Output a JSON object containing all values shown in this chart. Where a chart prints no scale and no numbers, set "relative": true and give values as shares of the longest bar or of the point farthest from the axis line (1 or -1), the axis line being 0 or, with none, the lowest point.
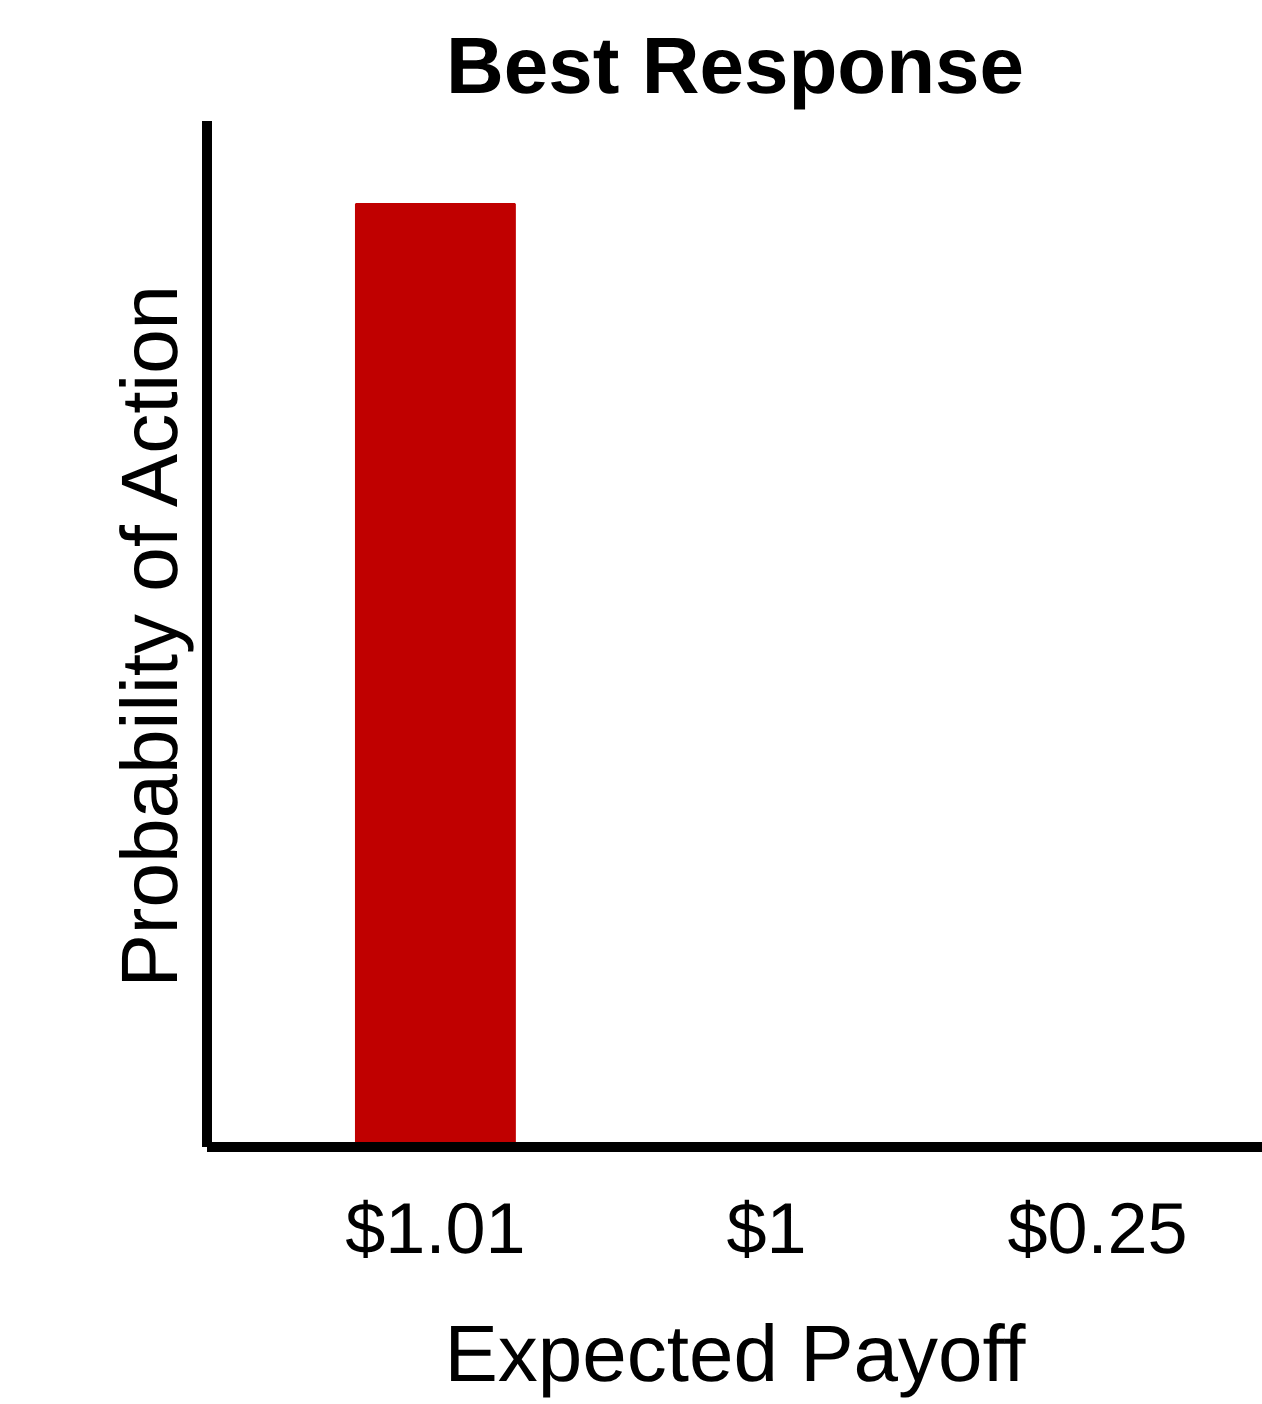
{
  "chart_data": {
    "type": "bar",
    "title": "Best Response",
    "xlabel": "Expected Payoff",
    "ylabel": "Probability of Action",
    "categories": [
      "$1.01",
      "$1",
      "$0.25"
    ],
    "values": [
      1,
      0,
      0
    ],
    "color": "#c00000",
    "relative": true
  }
}
